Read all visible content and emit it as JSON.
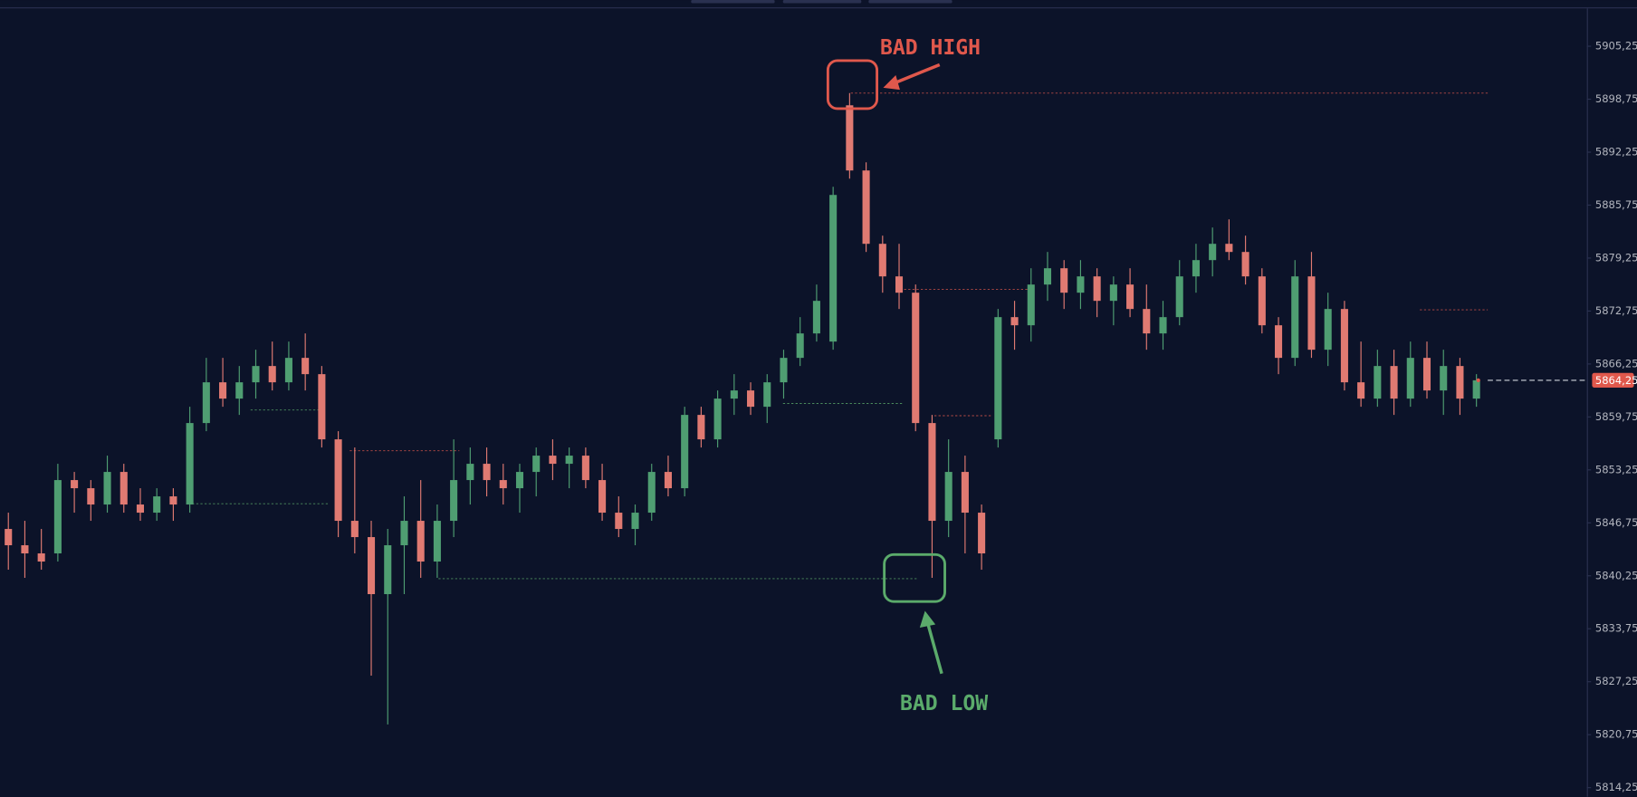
{
  "chart_data": {
    "type": "candlestick",
    "up_color": "#4f9e72",
    "down_color": "#e07a72",
    "ylim": [
      5813.1,
      5909.9
    ],
    "yticks": [
      {
        "value": 5905.25,
        "label": "5905,25"
      },
      {
        "value": 5898.75,
        "label": "5898,75"
      },
      {
        "value": 5892.25,
        "label": "5892,25"
      },
      {
        "value": 5885.75,
        "label": "5885,75"
      },
      {
        "value": 5879.25,
        "label": "5879,25"
      },
      {
        "value": 5872.75,
        "label": "5872,75"
      },
      {
        "value": 5866.25,
        "label": "5866,25"
      },
      {
        "value": 5859.75,
        "label": "5859,75"
      },
      {
        "value": 5853.25,
        "label": "5853,25"
      },
      {
        "value": 5846.75,
        "label": "5846,75"
      },
      {
        "value": 5840.25,
        "label": "5840,25"
      },
      {
        "value": 5833.75,
        "label": "5833,75"
      },
      {
        "value": 5827.25,
        "label": "5827,25"
      },
      {
        "value": 5820.75,
        "label": "5820,75"
      },
      {
        "value": 5814.25,
        "label": "5814,25"
      }
    ],
    "last_price": {
      "value": 5864.25,
      "label": "5864,25",
      "color": "#e0584c"
    },
    "annotations": [
      {
        "text": "BAD HIGH",
        "color": "#e0584c"
      },
      {
        "text": "BAD LOW",
        "color": "#5bab6b"
      }
    ],
    "levels": [
      {
        "value": 5899.5,
        "color": "#e0584c"
      },
      {
        "value": 5875.4,
        "color": "#e0584c"
      },
      {
        "value": 5861.4,
        "color": "#5bab6b"
      },
      {
        "value": 5839.9,
        "color": "#5bab6b"
      },
      {
        "value": 5855.6,
        "color": "#e0584c"
      },
      {
        "value": 5860.6,
        "color": "#5bab6b"
      },
      {
        "value": 5849.1,
        "color": "#5bab6b"
      },
      {
        "value": 5859.9,
        "color": "#e0584c"
      },
      {
        "value": 5872.9,
        "color": "#e0584c"
      }
    ],
    "ohlc": [
      [
        5846,
        5848,
        5841,
        5844
      ],
      [
        5844,
        5847,
        5840,
        5843
      ],
      [
        5843,
        5846,
        5841,
        5842
      ],
      [
        5843,
        5854,
        5842,
        5852
      ],
      [
        5852,
        5853,
        5848,
        5851
      ],
      [
        5851,
        5852,
        5847,
        5849
      ],
      [
        5849,
        5855,
        5848,
        5853
      ],
      [
        5853,
        5854,
        5848,
        5849
      ],
      [
        5849,
        5851,
        5847,
        5848
      ],
      [
        5848,
        5851,
        5847,
        5850
      ],
      [
        5850,
        5851,
        5847,
        5849
      ],
      [
        5849,
        5861,
        5848,
        5859
      ],
      [
        5859,
        5867,
        5858,
        5864
      ],
      [
        5864,
        5867,
        5861,
        5862
      ],
      [
        5862,
        5866,
        5860,
        5864
      ],
      [
        5864,
        5868,
        5862,
        5866
      ],
      [
        5866,
        5869,
        5863,
        5864
      ],
      [
        5864,
        5869,
        5863,
        5867
      ],
      [
        5867,
        5870,
        5863,
        5865
      ],
      [
        5865,
        5866,
        5856,
        5857
      ],
      [
        5857,
        5858,
        5845,
        5847
      ],
      [
        5847,
        5856,
        5843,
        5845
      ],
      [
        5845,
        5847,
        5828,
        5838
      ],
      [
        5838,
        5846,
        5822,
        5844
      ],
      [
        5844,
        5850,
        5838,
        5847
      ],
      [
        5847,
        5852,
        5840,
        5842
      ],
      [
        5842,
        5849,
        5840,
        5847
      ],
      [
        5847,
        5857,
        5845,
        5852
      ],
      [
        5852,
        5856,
        5849,
        5854
      ],
      [
        5854,
        5856,
        5850,
        5852
      ],
      [
        5852,
        5854,
        5849,
        5851
      ],
      [
        5851,
        5854,
        5848,
        5853
      ],
      [
        5853,
        5856,
        5850,
        5855
      ],
      [
        5855,
        5857,
        5852,
        5854
      ],
      [
        5854,
        5856,
        5851,
        5855
      ],
      [
        5855,
        5856,
        5851,
        5852
      ],
      [
        5852,
        5854,
        5847,
        5848
      ],
      [
        5848,
        5850,
        5845,
        5846
      ],
      [
        5846,
        5849,
        5844,
        5848
      ],
      [
        5848,
        5854,
        5847,
        5853
      ],
      [
        5853,
        5855,
        5850,
        5851
      ],
      [
        5851,
        5861,
        5850,
        5860
      ],
      [
        5860,
        5861,
        5856,
        5857
      ],
      [
        5857,
        5863,
        5856,
        5862
      ],
      [
        5862,
        5865,
        5860,
        5863
      ],
      [
        5863,
        5864,
        5860,
        5861
      ],
      [
        5861,
        5865,
        5859,
        5864
      ],
      [
        5864,
        5868,
        5862,
        5867
      ],
      [
        5867,
        5872,
        5866,
        5870
      ],
      [
        5870,
        5876,
        5869,
        5874
      ],
      [
        5869,
        5888,
        5868,
        5887
      ],
      [
        5898,
        5899.5,
        5889,
        5890
      ],
      [
        5890,
        5891,
        5880,
        5881
      ],
      [
        5881,
        5882,
        5875,
        5877
      ],
      [
        5877,
        5881,
        5873,
        5875
      ],
      [
        5875,
        5876,
        5858,
        5859
      ],
      [
        5859,
        5860,
        5840,
        5847
      ],
      [
        5847,
        5857,
        5845,
        5853
      ],
      [
        5853,
        5855,
        5843,
        5848
      ],
      [
        5848,
        5849,
        5841,
        5843
      ],
      [
        5857,
        5873,
        5856,
        5872
      ],
      [
        5872,
        5874,
        5868,
        5871
      ],
      [
        5871,
        5878,
        5869,
        5876
      ],
      [
        5876,
        5880,
        5874,
        5878
      ],
      [
        5878,
        5879,
        5873,
        5875
      ],
      [
        5875,
        5879,
        5873,
        5877
      ],
      [
        5877,
        5878,
        5872,
        5874
      ],
      [
        5874,
        5877,
        5871,
        5876
      ],
      [
        5876,
        5878,
        5872,
        5873
      ],
      [
        5873,
        5876,
        5868,
        5870
      ],
      [
        5870,
        5874,
        5868,
        5872
      ],
      [
        5872,
        5879,
        5871,
        5877
      ],
      [
        5877,
        5881,
        5875,
        5879
      ],
      [
        5879,
        5883,
        5877,
        5881
      ],
      [
        5881,
        5884,
        5879,
        5880
      ],
      [
        5880,
        5882,
        5876,
        5877
      ],
      [
        5877,
        5878,
        5870,
        5871
      ],
      [
        5871,
        5872,
        5865,
        5867
      ],
      [
        5867,
        5879,
        5866,
        5877
      ],
      [
        5877,
        5880,
        5867,
        5868
      ],
      [
        5868,
        5875,
        5866,
        5873
      ],
      [
        5873,
        5874,
        5863,
        5864
      ],
      [
        5864,
        5869,
        5861,
        5862
      ],
      [
        5862,
        5868,
        5861,
        5866
      ],
      [
        5866,
        5868,
        5860,
        5862
      ],
      [
        5862,
        5869,
        5861,
        5867
      ],
      [
        5867,
        5869,
        5862,
        5863
      ],
      [
        5863,
        5868,
        5860,
        5866
      ],
      [
        5866,
        5867,
        5860,
        5862
      ],
      [
        5862,
        5865,
        5861,
        5864.25
      ]
    ]
  }
}
